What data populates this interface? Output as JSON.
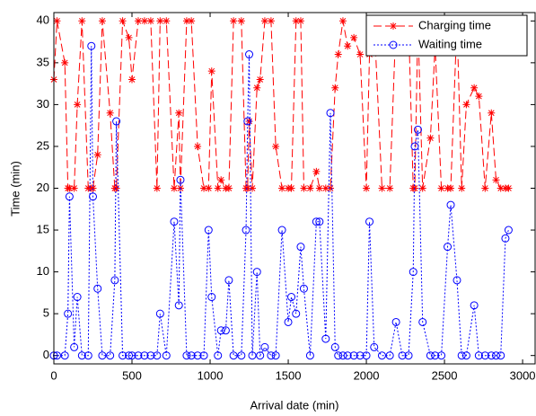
{
  "chart_data": {
    "type": "line",
    "xlabel": "Arrival date (min)",
    "ylabel": "Time (min)",
    "x": [
      0,
      20,
      70,
      90,
      100,
      130,
      150,
      180,
      220,
      240,
      250,
      280,
      310,
      360,
      390,
      400,
      440,
      480,
      500,
      540,
      580,
      620,
      660,
      680,
      720,
      770,
      800,
      810,
      850,
      880,
      920,
      960,
      990,
      1010,
      1050,
      1070,
      1100,
      1120,
      1150,
      1200,
      1230,
      1240,
      1250,
      1270,
      1300,
      1320,
      1350,
      1390,
      1420,
      1460,
      1500,
      1520,
      1550,
      1580,
      1600,
      1640,
      1680,
      1700,
      1740,
      1770,
      1800,
      1820,
      1850,
      1880,
      1920,
      1960,
      2000,
      2020,
      2050,
      2100,
      2150,
      2190,
      2230,
      2270,
      2300,
      2310,
      2330,
      2360,
      2410,
      2440,
      2480,
      2520,
      2540,
      2580,
      2610,
      2640,
      2690,
      2720,
      2760,
      2800,
      2830,
      2860,
      2890,
      2910
    ],
    "series": [
      {
        "name": "Charging time",
        "color": "#ff0000",
        "linestyle": "dashed",
        "marker": "asterisk",
        "values": [
          33,
          40,
          35,
          20,
          20,
          20,
          30,
          40,
          20,
          20,
          20,
          24,
          40,
          29,
          20,
          20,
          40,
          38,
          33,
          40,
          40,
          40,
          20,
          40,
          40,
          20,
          29,
          20,
          40,
          40,
          25,
          20,
          20,
          34,
          20,
          21,
          20,
          20,
          40,
          40,
          20,
          20,
          28,
          20,
          32,
          33,
          40,
          40,
          25,
          20,
          20,
          20,
          40,
          40,
          20,
          20,
          22,
          20,
          20,
          20,
          32,
          36,
          40,
          37,
          38,
          36,
          20,
          36,
          40,
          20,
          20,
          40,
          40,
          40,
          20,
          20,
          40,
          20,
          26,
          37,
          20,
          20,
          20,
          40,
          20,
          30,
          32,
          31,
          20,
          29,
          21,
          20,
          20,
          20
        ]
      },
      {
        "name": "Waiting time",
        "color": "#0000ff",
        "linestyle": "dotted",
        "marker": "circle",
        "values": [
          0,
          0,
          0,
          5,
          19,
          1,
          7,
          0,
          0,
          37,
          19,
          8,
          0,
          0,
          9,
          28,
          0,
          0,
          0,
          0,
          0,
          0,
          0,
          5,
          0,
          16,
          6,
          21,
          0,
          0,
          0,
          0,
          15,
          7,
          0,
          3,
          3,
          9,
          0,
          0,
          15,
          28,
          36,
          0,
          10,
          0,
          1,
          0,
          0,
          15,
          4,
          7,
          5,
          13,
          8,
          0,
          16,
          16,
          2,
          29,
          1,
          0,
          0,
          0,
          0,
          0,
          0,
          16,
          1,
          0,
          0,
          4,
          0,
          0,
          10,
          25,
          27,
          4,
          0,
          0,
          0,
          13,
          18,
          9,
          0,
          0,
          6,
          0,
          0,
          0,
          0,
          0,
          14,
          15
        ]
      }
    ],
    "xlim": [
      0,
      3080
    ],
    "ylim": [
      -1,
      41
    ],
    "xticks": [
      0,
      500,
      1000,
      1500,
      2000,
      2500,
      3000
    ],
    "yticks": [
      0,
      5,
      10,
      15,
      20,
      25,
      30,
      35,
      40
    ],
    "legend": "upper right"
  }
}
